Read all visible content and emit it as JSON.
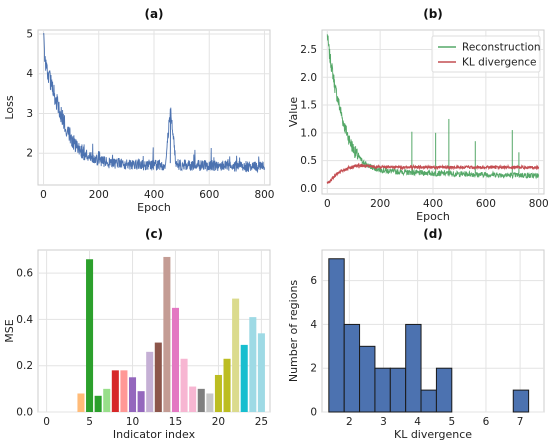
{
  "chart_data": [
    {
      "panel": "(a)",
      "type": "line",
      "title": "(a)",
      "xlabel": "Epoch",
      "ylabel": "Loss",
      "xlim": [
        -20,
        820
      ],
      "ylim": [
        1.2,
        5.1
      ],
      "xticks": [
        0,
        200,
        400,
        600,
        800
      ],
      "yticks": [
        2,
        3,
        4,
        5
      ],
      "grid": true,
      "series": [
        {
          "color": "#4c72b0",
          "x": [
            0,
            5,
            10,
            20,
            30,
            40,
            50,
            60,
            70,
            80,
            90,
            100,
            110,
            120,
            130,
            140,
            150,
            160,
            170,
            180,
            200,
            220,
            240,
            260,
            280,
            300,
            320,
            340,
            360,
            380,
            400,
            420,
            440,
            460,
            480,
            500,
            520,
            540,
            560,
            580,
            600,
            620,
            640,
            660,
            680,
            700,
            720,
            740,
            760,
            780,
            800
          ],
          "y": [
            4.95,
            4.4,
            4.15,
            3.95,
            3.7,
            3.45,
            3.25,
            3.05,
            2.85,
            2.7,
            2.55,
            2.4,
            2.3,
            2.22,
            2.15,
            2.05,
            2.0,
            1.95,
            1.9,
            1.87,
            1.8,
            1.78,
            1.76,
            1.75,
            1.74,
            1.73,
            1.72,
            1.72,
            1.71,
            1.71,
            1.7,
            1.7,
            1.71,
            3.1,
            1.72,
            1.7,
            1.7,
            1.69,
            1.69,
            1.69,
            1.68,
            1.68,
            1.68,
            1.68,
            1.67,
            1.67,
            1.67,
            1.67,
            1.67,
            1.66,
            1.66
          ]
        }
      ]
    },
    {
      "panel": "(b)",
      "type": "line",
      "title": "(b)",
      "xlabel": "Epoch",
      "ylabel": "Value",
      "xlim": [
        -20,
        820
      ],
      "ylim": [
        -0.1,
        2.85
      ],
      "xticks": [
        0,
        200,
        400,
        600,
        800
      ],
      "yticks": [
        0.0,
        0.5,
        1.0,
        1.5,
        2.0,
        2.5
      ],
      "legend": "top-right",
      "grid": true,
      "series": [
        {
          "name": "Reconstruction",
          "color": "#55a868",
          "x": [
            0,
            5,
            10,
            20,
            30,
            40,
            50,
            60,
            70,
            80,
            90,
            100,
            110,
            120,
            130,
            140,
            150,
            160,
            170,
            180,
            200,
            220,
            240,
            260,
            280,
            300,
            320,
            340,
            360,
            380,
            400,
            420,
            440,
            460,
            480,
            500,
            520,
            540,
            560,
            580,
            600,
            620,
            640,
            660,
            680,
            700,
            720,
            740,
            760,
            780,
            800
          ],
          "y": [
            2.75,
            2.55,
            2.35,
            2.1,
            1.8,
            1.6,
            1.4,
            1.2,
            1.05,
            0.92,
            0.8,
            0.7,
            0.62,
            0.56,
            0.5,
            0.46,
            0.42,
            0.4,
            0.38,
            0.36,
            0.34,
            0.32,
            0.31,
            0.3,
            0.3,
            0.29,
            0.29,
            0.28,
            0.28,
            0.28,
            0.27,
            0.27,
            0.27,
            0.27,
            0.26,
            0.26,
            0.26,
            0.26,
            0.25,
            0.25,
            0.25,
            0.25,
            0.25,
            0.24,
            0.24,
            0.24,
            0.24,
            0.24,
            0.23,
            0.23,
            0.23
          ]
        },
        {
          "name": "KL divergence",
          "color": "#c44e52",
          "x": [
            0,
            10,
            20,
            30,
            40,
            50,
            60,
            70,
            80,
            90,
            100,
            120,
            140,
            160,
            180,
            200,
            250,
            300,
            350,
            400,
            450,
            500,
            550,
            600,
            650,
            700,
            750,
            800
          ],
          "y": [
            0.1,
            0.12,
            0.18,
            0.23,
            0.27,
            0.3,
            0.33,
            0.35,
            0.37,
            0.38,
            0.4,
            0.41,
            0.41,
            0.4,
            0.39,
            0.39,
            0.38,
            0.38,
            0.38,
            0.38,
            0.38,
            0.38,
            0.38,
            0.38,
            0.38,
            0.38,
            0.38,
            0.38
          ]
        }
      ]
    },
    {
      "panel": "(c)",
      "type": "bar",
      "title": "(c)",
      "xlabel": "Indicator index",
      "ylabel": "MSE",
      "xlim": [
        -1,
        26
      ],
      "ylim": [
        0,
        0.7
      ],
      "xticks": [
        0,
        5,
        10,
        15,
        20,
        25
      ],
      "yticks": [
        0.0,
        0.2,
        0.4,
        0.6
      ],
      "grid": true,
      "x": [
        1,
        2,
        3,
        4,
        5,
        6,
        7,
        8,
        9,
        10,
        11,
        12,
        13,
        14,
        15,
        16,
        17,
        18,
        19,
        20,
        21,
        22,
        23,
        24,
        25
      ],
      "values": [
        0.0,
        0.0,
        0.0,
        0.08,
        0.66,
        0.07,
        0.1,
        0.18,
        0.18,
        0.15,
        0.09,
        0.26,
        0.3,
        0.67,
        0.45,
        0.23,
        0.11,
        0.1,
        0.08,
        0.16,
        0.23,
        0.49,
        0.29,
        0.41,
        0.34
      ],
      "colors": [
        "#4c72b0",
        "#aec7e8",
        "#ff7f0e",
        "#ffbb78",
        "#2ca02c",
        "#2ca02c",
        "#98df8a",
        "#d62728",
        "#ff9896",
        "#9467bd",
        "#9467bd",
        "#c5b0d5",
        "#8c564b",
        "#c49c94",
        "#e377c2",
        "#f7b6d2",
        "#f7b6d2",
        "#7f7f7f",
        "#c7c7c7",
        "#bcbd22",
        "#bcbd22",
        "#dbdb8d",
        "#17becf",
        "#9edae5",
        "#9edae5"
      ]
    },
    {
      "panel": "(d)",
      "type": "histogram",
      "title": "(d)",
      "xlabel": "KL divergence",
      "ylabel": "Number of regions",
      "xlim": [
        1.2,
        7.7
      ],
      "ylim": [
        0,
        7.4
      ],
      "xticks": [
        2,
        3,
        4,
        5,
        6,
        7
      ],
      "yticks": [
        0,
        2,
        4,
        6
      ],
      "grid": true,
      "bin_edges": [
        1.4,
        1.85,
        2.3,
        2.75,
        3.2,
        3.65,
        4.1,
        4.55,
        5.0,
        5.45,
        5.9,
        6.35,
        6.8,
        7.25
      ],
      "counts": [
        7,
        4,
        3,
        2,
        2,
        4,
        1,
        2,
        0,
        0,
        0,
        0,
        1
      ],
      "color": "#4c72b0"
    }
  ]
}
